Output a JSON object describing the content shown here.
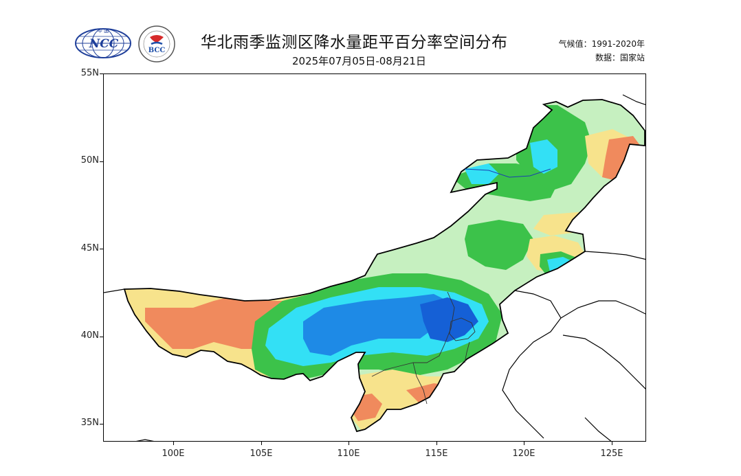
{
  "header": {
    "title": "华北雨季监测区降水量距平百分率空间分布",
    "subtitle": "2025年07月05日-08月21日",
    "climatology": "气候值：1991-2020年",
    "data_source": "数据：国家站"
  },
  "logos": {
    "ncc": {
      "top_text": "中 国",
      "main_text": "NCC"
    },
    "bcc": {
      "main_text": "BCC"
    }
  },
  "map": {
    "lat_ticks": [
      "55N",
      "50N",
      "45N",
      "40N",
      "35N"
    ],
    "lon_ticks": [
      "100E",
      "105E",
      "110E",
      "115E",
      "120E",
      "125E"
    ],
    "colors": {
      "orange": "#f08a5d",
      "yellow": "#f7e38c",
      "light_green": "#c6f0c0",
      "green": "#3cc24a",
      "cyan": "#33e0f5",
      "blue": "#1e8ae6",
      "dark_blue": "#1560d6"
    }
  }
}
